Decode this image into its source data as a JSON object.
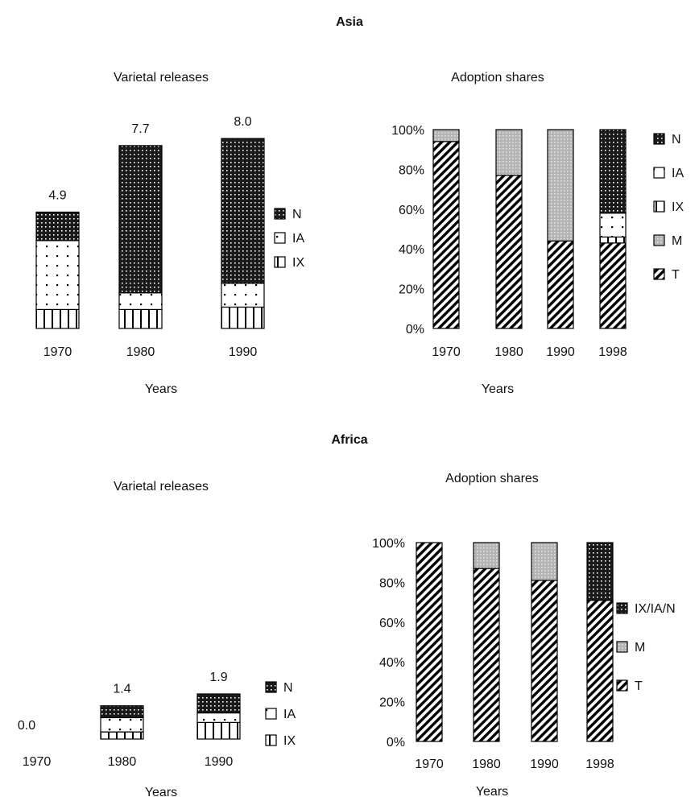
{
  "chart_data": [
    {
      "type": "bar",
      "stacked": true,
      "group": "Asia",
      "title": "Varietal releases",
      "xlabel": "Years",
      "ylabel": "",
      "categories": [
        "1970",
        "1980",
        "1990"
      ],
      "totals": [
        "4.9",
        "7.7",
        "8.0"
      ],
      "series": [
        {
          "name": "IX",
          "values": [
            0.8,
            0.8,
            0.9
          ]
        },
        {
          "name": "IA",
          "values": [
            2.9,
            0.7,
            1.0
          ]
        },
        {
          "name": "N",
          "values": [
            1.2,
            6.2,
            6.1
          ]
        }
      ],
      "legend": [
        "N",
        "IA",
        "IX"
      ],
      "legend_position": "right",
      "ylim": [
        0,
        8.0
      ]
    },
    {
      "type": "bar",
      "stacked": true,
      "group": "Asia",
      "title": "Adoption shares",
      "xlabel": "Years",
      "ylabel": "",
      "categories": [
        "1970",
        "1980",
        "1990",
        "1998"
      ],
      "y_ticks": [
        "0%",
        "20%",
        "40%",
        "60%",
        "80%",
        "100%"
      ],
      "series": [
        {
          "name": "T",
          "values": [
            94,
            77,
            44,
            43
          ]
        },
        {
          "name": "M",
          "values": [
            6,
            23,
            56,
            0
          ]
        },
        {
          "name": "IX",
          "values": [
            0,
            0,
            0,
            3
          ]
        },
        {
          "name": "IA",
          "values": [
            0,
            0,
            0,
            12
          ]
        },
        {
          "name": "N",
          "values": [
            0,
            0,
            0,
            42
          ]
        }
      ],
      "legend": [
        "N",
        "IA",
        "IX",
        "M",
        "T"
      ],
      "legend_position": "right",
      "ylim": [
        0,
        100
      ]
    },
    {
      "type": "bar",
      "stacked": true,
      "group": "Africa",
      "title": "Varietal releases",
      "xlabel": "Years",
      "ylabel": "",
      "categories": [
        "1970",
        "1980",
        "1990"
      ],
      "totals": [
        "0.0",
        "1.4",
        "1.9"
      ],
      "series": [
        {
          "name": "IX",
          "values": [
            0,
            0.3,
            0.7
          ]
        },
        {
          "name": "IA",
          "values": [
            0,
            0.6,
            0.4
          ]
        },
        {
          "name": "N",
          "values": [
            0,
            0.5,
            0.8
          ]
        }
      ],
      "legend": [
        "N",
        "IA",
        "IX"
      ],
      "legend_position": "right",
      "ylim": [
        0,
        8.0
      ]
    },
    {
      "type": "bar",
      "stacked": true,
      "group": "Africa",
      "title": "Adoption shares",
      "xlabel": "Years",
      "ylabel": "",
      "categories": [
        "1970",
        "1980",
        "1990",
        "1998"
      ],
      "y_ticks": [
        "0%",
        "20%",
        "40%",
        "60%",
        "80%",
        "100%"
      ],
      "series": [
        {
          "name": "T",
          "values": [
            100,
            87,
            81,
            71
          ]
        },
        {
          "name": "M",
          "values": [
            0,
            13,
            19,
            0
          ]
        },
        {
          "name": "IX/IA/N",
          "values": [
            0,
            0,
            0,
            29
          ]
        }
      ],
      "legend": [
        "IX/IA/N",
        "M",
        "T"
      ],
      "legend_position": "right",
      "ylim": [
        0,
        100
      ]
    }
  ],
  "regions": {
    "asia": "Asia",
    "africa": "Africa"
  },
  "patterns": {
    "N": "pat-n",
    "IA": "pat-ia",
    "IX": "pat-ix",
    "M": "pat-m",
    "T": "pat-t",
    "IX/IA/N": "pat-n"
  }
}
